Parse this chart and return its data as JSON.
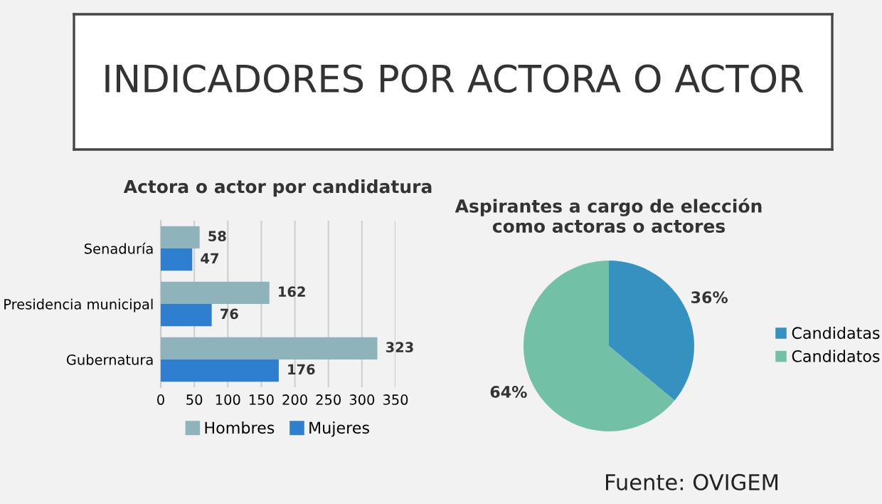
{
  "chart_data": [
    {
      "type": "other",
      "title": "INDICADORES POR ACTORA O ACTOR"
    },
    {
      "type": "bar",
      "orientation": "horizontal",
      "title": "Actora o actor por candidatura",
      "categories": [
        "Senaduría",
        "Presidencia municipal",
        "Gubernatura"
      ],
      "series": [
        {
          "name": "Hombres",
          "color": "#8fb3bb",
          "values": [
            58,
            162,
            323
          ]
        },
        {
          "name": "Mujeres",
          "color": "#2f7fd0",
          "values": [
            47,
            76,
            176
          ]
        }
      ],
      "xlim": [
        0,
        350
      ],
      "xticks": [
        0,
        50,
        100,
        150,
        200,
        250,
        300,
        350
      ],
      "grid": "x",
      "legend": "bottom",
      "data_labels": true
    },
    {
      "type": "pie",
      "title": "Aspirantes a cargo de elección\ncomo actoras o actores",
      "categories": [
        "Candidatas",
        "Candidatos"
      ],
      "values": [
        36,
        64
      ],
      "colors": [
        "#3591c0",
        "#72c1a6"
      ],
      "value_labels": [
        "36%",
        "64%"
      ],
      "legend": "right",
      "annotations": [
        "Fuente: OVIGEM"
      ]
    }
  ]
}
